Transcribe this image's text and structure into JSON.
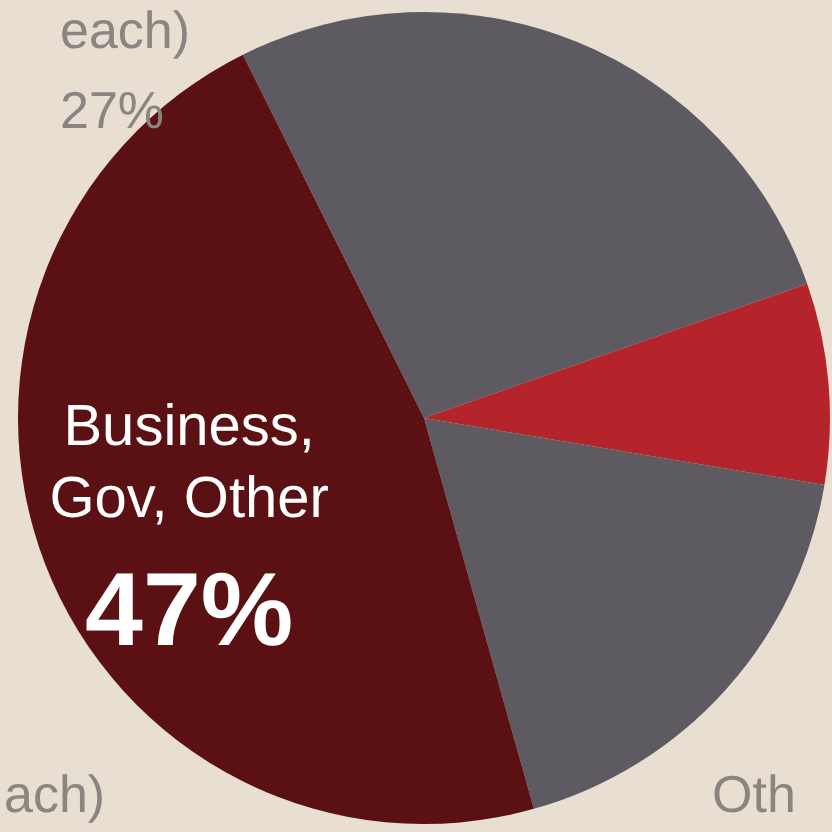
{
  "chart_data": {
    "type": "pie",
    "categories": [
      null,
      null,
      null,
      "Business, Gov, Other"
    ],
    "values": [
      27,
      8,
      18,
      47
    ],
    "colors": [
      "#5e5a62",
      "#b5232b",
      "#5e5a62",
      "#5b1114"
    ],
    "value_labels": [
      null,
      null,
      null,
      "47%"
    ],
    "annotations": [
      "each)",
      "27%",
      "ach)",
      "Oth"
    ],
    "legend": false
  }
}
